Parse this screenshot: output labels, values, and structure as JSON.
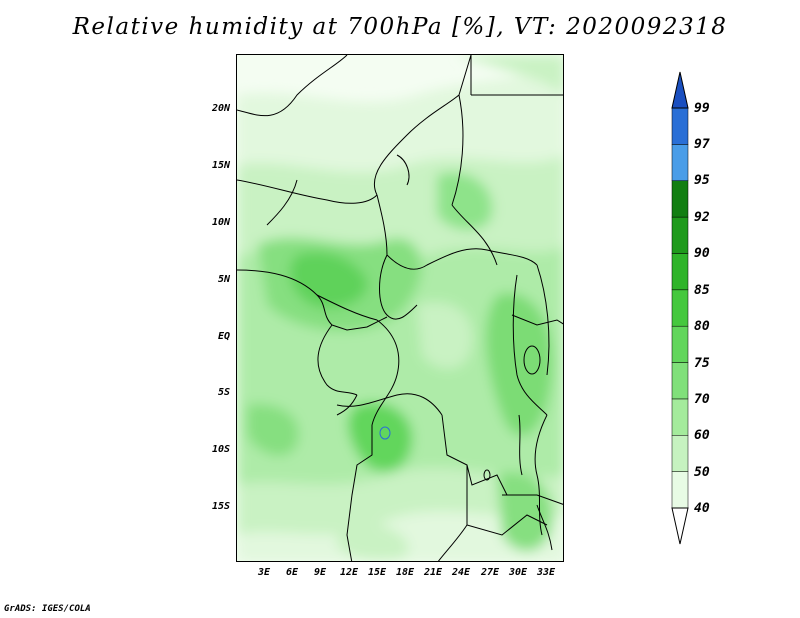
{
  "title": "Relative humidity at 700hPa [%], VT: 2020092318",
  "credit": "GrADS: IGES/COLA",
  "lat_labels": [
    "20N",
    "15N",
    "10N",
    "5N",
    "EQ",
    "5S",
    "10S",
    "15S"
  ],
  "lon_labels": [
    "3E",
    "6E",
    "9E",
    "12E",
    "15E",
    "18E",
    "21E",
    "24E",
    "27E",
    "30E",
    "33E"
  ],
  "colorbar": {
    "levels": [
      "40",
      "50",
      "60",
      "70",
      "75",
      "80",
      "85",
      "90",
      "92",
      "95",
      "97",
      "99"
    ],
    "colors": [
      "#ffffff",
      "#e8fbe5",
      "#c6f2c0",
      "#a4eb9c",
      "#80e07a",
      "#62d65c",
      "#45c83e",
      "#2fb42a",
      "#1f9a1c",
      "#127e12",
      "#4a9de8",
      "#2a6fd6",
      "#1a4fc0"
    ]
  }
}
